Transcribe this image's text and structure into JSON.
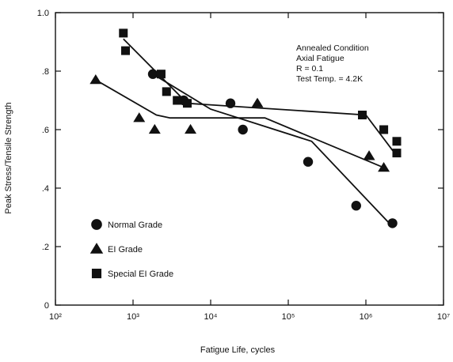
{
  "chart_data": {
    "type": "scatter",
    "title": "",
    "xlabel": "Fatigue Life, cycles",
    "ylabel": "Peak Stress/Tensile Strength",
    "xscale": "log",
    "xlim": [
      100,
      10000000
    ],
    "ylim": [
      0,
      1.0
    ],
    "x_ticks": [
      {
        "value": 100,
        "label": "10²"
      },
      {
        "value": 1000,
        "label": "10³"
      },
      {
        "value": 10000,
        "label": "10⁴"
      },
      {
        "value": 100000,
        "label": "10⁵"
      },
      {
        "value": 1000000,
        "label": "10⁶"
      },
      {
        "value": 10000000,
        "label": "10⁷"
      }
    ],
    "y_ticks": [
      {
        "value": 0,
        "label": "0"
      },
      {
        "value": 0.2,
        "label": ".2"
      },
      {
        "value": 0.4,
        "label": ".4"
      },
      {
        "value": 0.6,
        "label": ".6"
      },
      {
        "value": 0.8,
        "label": ".8"
      },
      {
        "value": 1.0,
        "label": "1.0"
      }
    ],
    "annotation": [
      "Annealed Condition",
      "Axial Fatigue",
      "R = 0.1",
      "Test Temp. = 4.2K"
    ],
    "legend_position": "bottom-left",
    "series": [
      {
        "name": "Normal Grade",
        "marker": "circle",
        "points": [
          [
            1800,
            0.79
          ],
          [
            4500,
            0.7
          ],
          [
            18000,
            0.69
          ],
          [
            26000,
            0.6
          ],
          [
            180000,
            0.49
          ],
          [
            750000,
            0.34
          ],
          [
            2200000,
            0.28
          ]
        ],
        "fit": [
          [
            1800,
            0.79
          ],
          [
            10000,
            0.67
          ],
          [
            200000,
            0.56
          ],
          [
            2000000,
            0.28
          ]
        ]
      },
      {
        "name": "EI Grade",
        "marker": "triangle",
        "points": [
          [
            330,
            0.77
          ],
          [
            1200,
            0.64
          ],
          [
            1900,
            0.6
          ],
          [
            5500,
            0.6
          ],
          [
            40000,
            0.69
          ],
          [
            1100000,
            0.51
          ],
          [
            1700000,
            0.47
          ]
        ],
        "fit": [
          [
            330,
            0.77
          ],
          [
            2000,
            0.65
          ],
          [
            3000,
            0.64
          ],
          [
            50000,
            0.64
          ],
          [
            1700000,
            0.47
          ]
        ]
      },
      {
        "name": "Special EI Grade",
        "marker": "square",
        "points": [
          [
            750,
            0.93
          ],
          [
            800,
            0.87
          ],
          [
            2300,
            0.79
          ],
          [
            2700,
            0.73
          ],
          [
            3700,
            0.7
          ],
          [
            5000,
            0.69
          ],
          [
            900000,
            0.65
          ],
          [
            1700000,
            0.6
          ],
          [
            2500000,
            0.56
          ],
          [
            2500000,
            0.52
          ]
        ],
        "fit": [
          [
            750,
            0.91
          ],
          [
            5000,
            0.69
          ],
          [
            1000000,
            0.65
          ],
          [
            2500000,
            0.51
          ]
        ]
      }
    ]
  }
}
